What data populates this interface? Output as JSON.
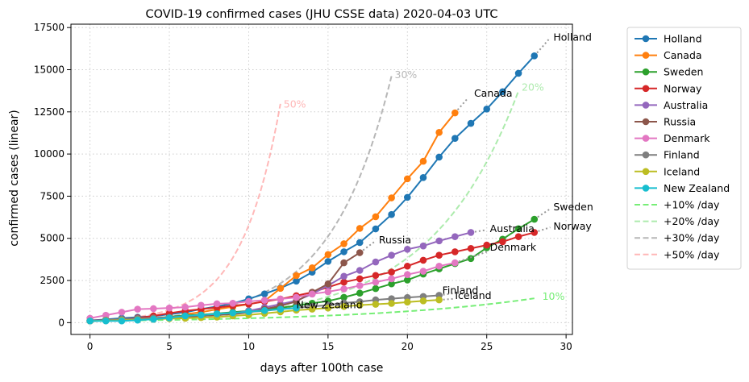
{
  "chart_data": {
    "type": "line",
    "title": "COVID-19 confirmed cases (JHU CSSE data) 2020-04-03 UTC",
    "xlabel": "days after 100th case",
    "ylabel": "confirmed cases (linear)",
    "xlim": [
      -1.2,
      30.4
    ],
    "ylim": [
      -700,
      17700
    ],
    "xticks": [
      0,
      5,
      10,
      15,
      20,
      25,
      30
    ],
    "yticks": [
      0,
      2500,
      5000,
      7500,
      10000,
      12500,
      15000,
      17500
    ],
    "ytick_labels": [
      "0",
      "2500",
      "5000",
      "7500",
      "10000",
      "12500",
      "15000",
      "17500"
    ],
    "grid": true,
    "legend_position": "outside-right",
    "series": [
      {
        "name": "Holland",
        "color": "#1f77b4",
        "x": [
          0,
          1,
          2,
          3,
          4,
          5,
          6,
          7,
          8,
          9,
          10,
          11,
          12,
          13,
          14,
          15,
          16,
          17,
          18,
          19,
          20,
          21,
          22,
          23,
          24,
          25,
          26,
          27,
          28
        ],
        "y": [
          128,
          188,
          265,
          321,
          382,
          503,
          614,
          804,
          959,
          1135,
          1413,
          1705,
          2051,
          2460,
          2994,
          3631,
          4204,
          4749,
          5560,
          6412,
          7431,
          8603,
          9819,
          10930,
          11817,
          12667,
          13696,
          14788,
          15821
        ],
        "label": "Holland",
        "label_pos": [
          29.2,
          16900
        ],
        "proj": [
          [
            28,
            15821
          ],
          [
            28.5,
            16350
          ],
          [
            29,
            16900
          ]
        ]
      },
      {
        "name": "Canada",
        "color": "#ff7f0e",
        "x": [
          6,
          7,
          8,
          9,
          10,
          11,
          12,
          13,
          14,
          15,
          16,
          17,
          18,
          19,
          20,
          21,
          22,
          23
        ],
        "y": [
          500,
          620,
          790,
          940,
          1090,
          1280,
          2030,
          2790,
          3250,
          4040,
          4680,
          5590,
          6280,
          7400,
          8530,
          9570,
          11280,
          12440
        ],
        "label": "Canada",
        "label_pos": [
          24.2,
          13600
        ],
        "proj": [
          [
            23,
            12440
          ],
          [
            23.8,
            13300
          ]
        ]
      },
      {
        "name": "Sweden",
        "color": "#2ca02c",
        "x": [
          0,
          1,
          2,
          3,
          4,
          5,
          6,
          7,
          8,
          9,
          10,
          11,
          12,
          13,
          14,
          15,
          16,
          17,
          18,
          19,
          20,
          21,
          22,
          23,
          24,
          25,
          26,
          27,
          28
        ],
        "y": [
          100,
          120,
          150,
          180,
          240,
          350,
          430,
          470,
          540,
          620,
          700,
          800,
          880,
          1000,
          1150,
          1280,
          1500,
          1750,
          2020,
          2300,
          2530,
          2880,
          3190,
          3500,
          3800,
          4440,
          4950,
          5570,
          6130
        ],
        "label": "Sweden",
        "label_pos": [
          29.2,
          6850
        ],
        "proj": [
          [
            28,
            6130
          ],
          [
            29,
            6750
          ]
        ]
      },
      {
        "name": "Norway",
        "color": "#d62728",
        "x": [
          0,
          1,
          2,
          3,
          4,
          5,
          6,
          7,
          8,
          9,
          10,
          11,
          12,
          13,
          14,
          15,
          16,
          17,
          18,
          19,
          20,
          21,
          22,
          23,
          24,
          25,
          26,
          27,
          28
        ],
        "y": [
          110,
          150,
          200,
          280,
          400,
          560,
          700,
          800,
          900,
          1000,
          1100,
          1250,
          1400,
          1600,
          1800,
          2100,
          2400,
          2600,
          2800,
          3000,
          3350,
          3700,
          4000,
          4200,
          4400,
          4600,
          4800,
          5100,
          5350
        ],
        "label": "Norway",
        "label_pos": [
          29.2,
          5700
        ],
        "proj": [
          [
            28,
            5350
          ],
          [
            29,
            5650
          ]
        ]
      },
      {
        "name": "Australia",
        "color": "#9467bd",
        "x": [
          0,
          1,
          2,
          3,
          4,
          5,
          6,
          7,
          8,
          9,
          10,
          11,
          12,
          13,
          14,
          15,
          16,
          17,
          18,
          19,
          20,
          21,
          22,
          23,
          24
        ],
        "y": [
          100,
          120,
          150,
          200,
          250,
          300,
          350,
          400,
          450,
          550,
          700,
          900,
          1100,
          1300,
          1700,
          2200,
          2750,
          3100,
          3600,
          4000,
          4350,
          4550,
          4850,
          5100,
          5350
        ],
        "label": "Australia",
        "label_pos": [
          25.2,
          5550
        ],
        "proj": [
          [
            24,
            5350
          ],
          [
            25,
            5500
          ]
        ]
      },
      {
        "name": "Russia",
        "color": "#8c564b",
        "x": [
          0,
          1,
          2,
          3,
          4,
          5,
          6,
          7,
          8,
          9,
          10,
          11,
          12,
          13,
          14,
          15,
          16,
          17
        ],
        "y": [
          100,
          120,
          150,
          200,
          250,
          300,
          350,
          400,
          450,
          500,
          600,
          800,
          1000,
          1250,
          1800,
          2300,
          3550,
          4150
        ],
        "label": "Russia",
        "label_pos": [
          18.2,
          4900
        ],
        "proj": [
          [
            17,
            4150
          ],
          [
            18,
            4850
          ]
        ]
      },
      {
        "name": "Denmark",
        "color": "#e377c2",
        "x": [
          0,
          1,
          2,
          3,
          4,
          5,
          6,
          7,
          8,
          9,
          10,
          11,
          12,
          13,
          14,
          15,
          16,
          17,
          18,
          19,
          20,
          21,
          22,
          23
        ],
        "y": [
          260,
          440,
          620,
          800,
          830,
          870,
          920,
          1030,
          1120,
          1150,
          1260,
          1330,
          1400,
          1500,
          1700,
          1830,
          2000,
          2200,
          2400,
          2600,
          2850,
          3050,
          3350,
          3550
        ],
        "label": "Denmark",
        "label_pos": [
          25.2,
          4450
        ],
        "proj": [
          [
            23,
            3550
          ],
          [
            25,
            4200
          ]
        ]
      },
      {
        "name": "Finland",
        "color": "#7f7f7f",
        "x": [
          0,
          1,
          2,
          3,
          4,
          5,
          6,
          7,
          8,
          9,
          10,
          11,
          12,
          13,
          14,
          15,
          16,
          17,
          18,
          19,
          20,
          21,
          22
        ],
        "y": [
          100,
          150,
          200,
          250,
          280,
          320,
          400,
          450,
          520,
          580,
          630,
          700,
          800,
          880,
          960,
          1040,
          1170,
          1240,
          1350,
          1420,
          1490,
          1550,
          1620
        ],
        "label": "Finland",
        "label_pos": [
          22.2,
          1900
        ],
        "proj": [
          [
            22,
            1620
          ],
          [
            23,
            1750
          ]
        ]
      },
      {
        "name": "Iceland",
        "color": "#bcbd22",
        "x": [
          0,
          1,
          2,
          3,
          4,
          5,
          6,
          7,
          8,
          9,
          10,
          11,
          12,
          13,
          14,
          15,
          16,
          17,
          18,
          19,
          20,
          21,
          22
        ],
        "y": [
          100,
          120,
          140,
          170,
          200,
          240,
          260,
          300,
          330,
          400,
          460,
          550,
          640,
          740,
          800,
          870,
          960,
          1040,
          1090,
          1140,
          1220,
          1290,
          1350
        ],
        "label": "Iceland",
        "label_pos": [
          23.0,
          1600
        ],
        "proj": [
          [
            22,
            1350
          ],
          [
            23,
            1420
          ]
        ]
      },
      {
        "name": "New Zealand",
        "color": "#17becf",
        "x": [
          0,
          1,
          2,
          3,
          4,
          5,
          6,
          7,
          8,
          9,
          10,
          11,
          12,
          13
        ],
        "y": [
          100,
          100,
          100,
          150,
          200,
          280,
          400,
          450,
          520,
          580,
          650,
          720,
          800,
          870
        ],
        "label": "New Zealand",
        "label_pos": [
          13.0,
          1050
        ],
        "proj": [
          [
            13,
            870
          ],
          [
            14,
            950
          ]
        ]
      }
    ],
    "reference_lines": [
      {
        "name": "+10% /day",
        "rate": 0.1,
        "x_end": 28,
        "color": "#77ee77",
        "opacity": 1.0,
        "label": "10%",
        "label_pos": [
          28.5,
          1550
        ]
      },
      {
        "name": "+20% /day",
        "rate": 0.2,
        "x_end": 27,
        "color": "#77dd77",
        "opacity": 0.6,
        "label": "20%",
        "label_pos": [
          27.2,
          13950
        ]
      },
      {
        "name": "+30% /day",
        "rate": 0.3,
        "x_end": 19,
        "color": "#999999",
        "opacity": 0.7,
        "label": "30%",
        "label_pos": [
          19.2,
          14700
        ]
      },
      {
        "name": "+50% /day",
        "rate": 0.5,
        "x_end": 12,
        "color": "#ff8888",
        "opacity": 0.6,
        "label": "50%",
        "label_pos": [
          12.2,
          12950
        ]
      }
    ]
  }
}
